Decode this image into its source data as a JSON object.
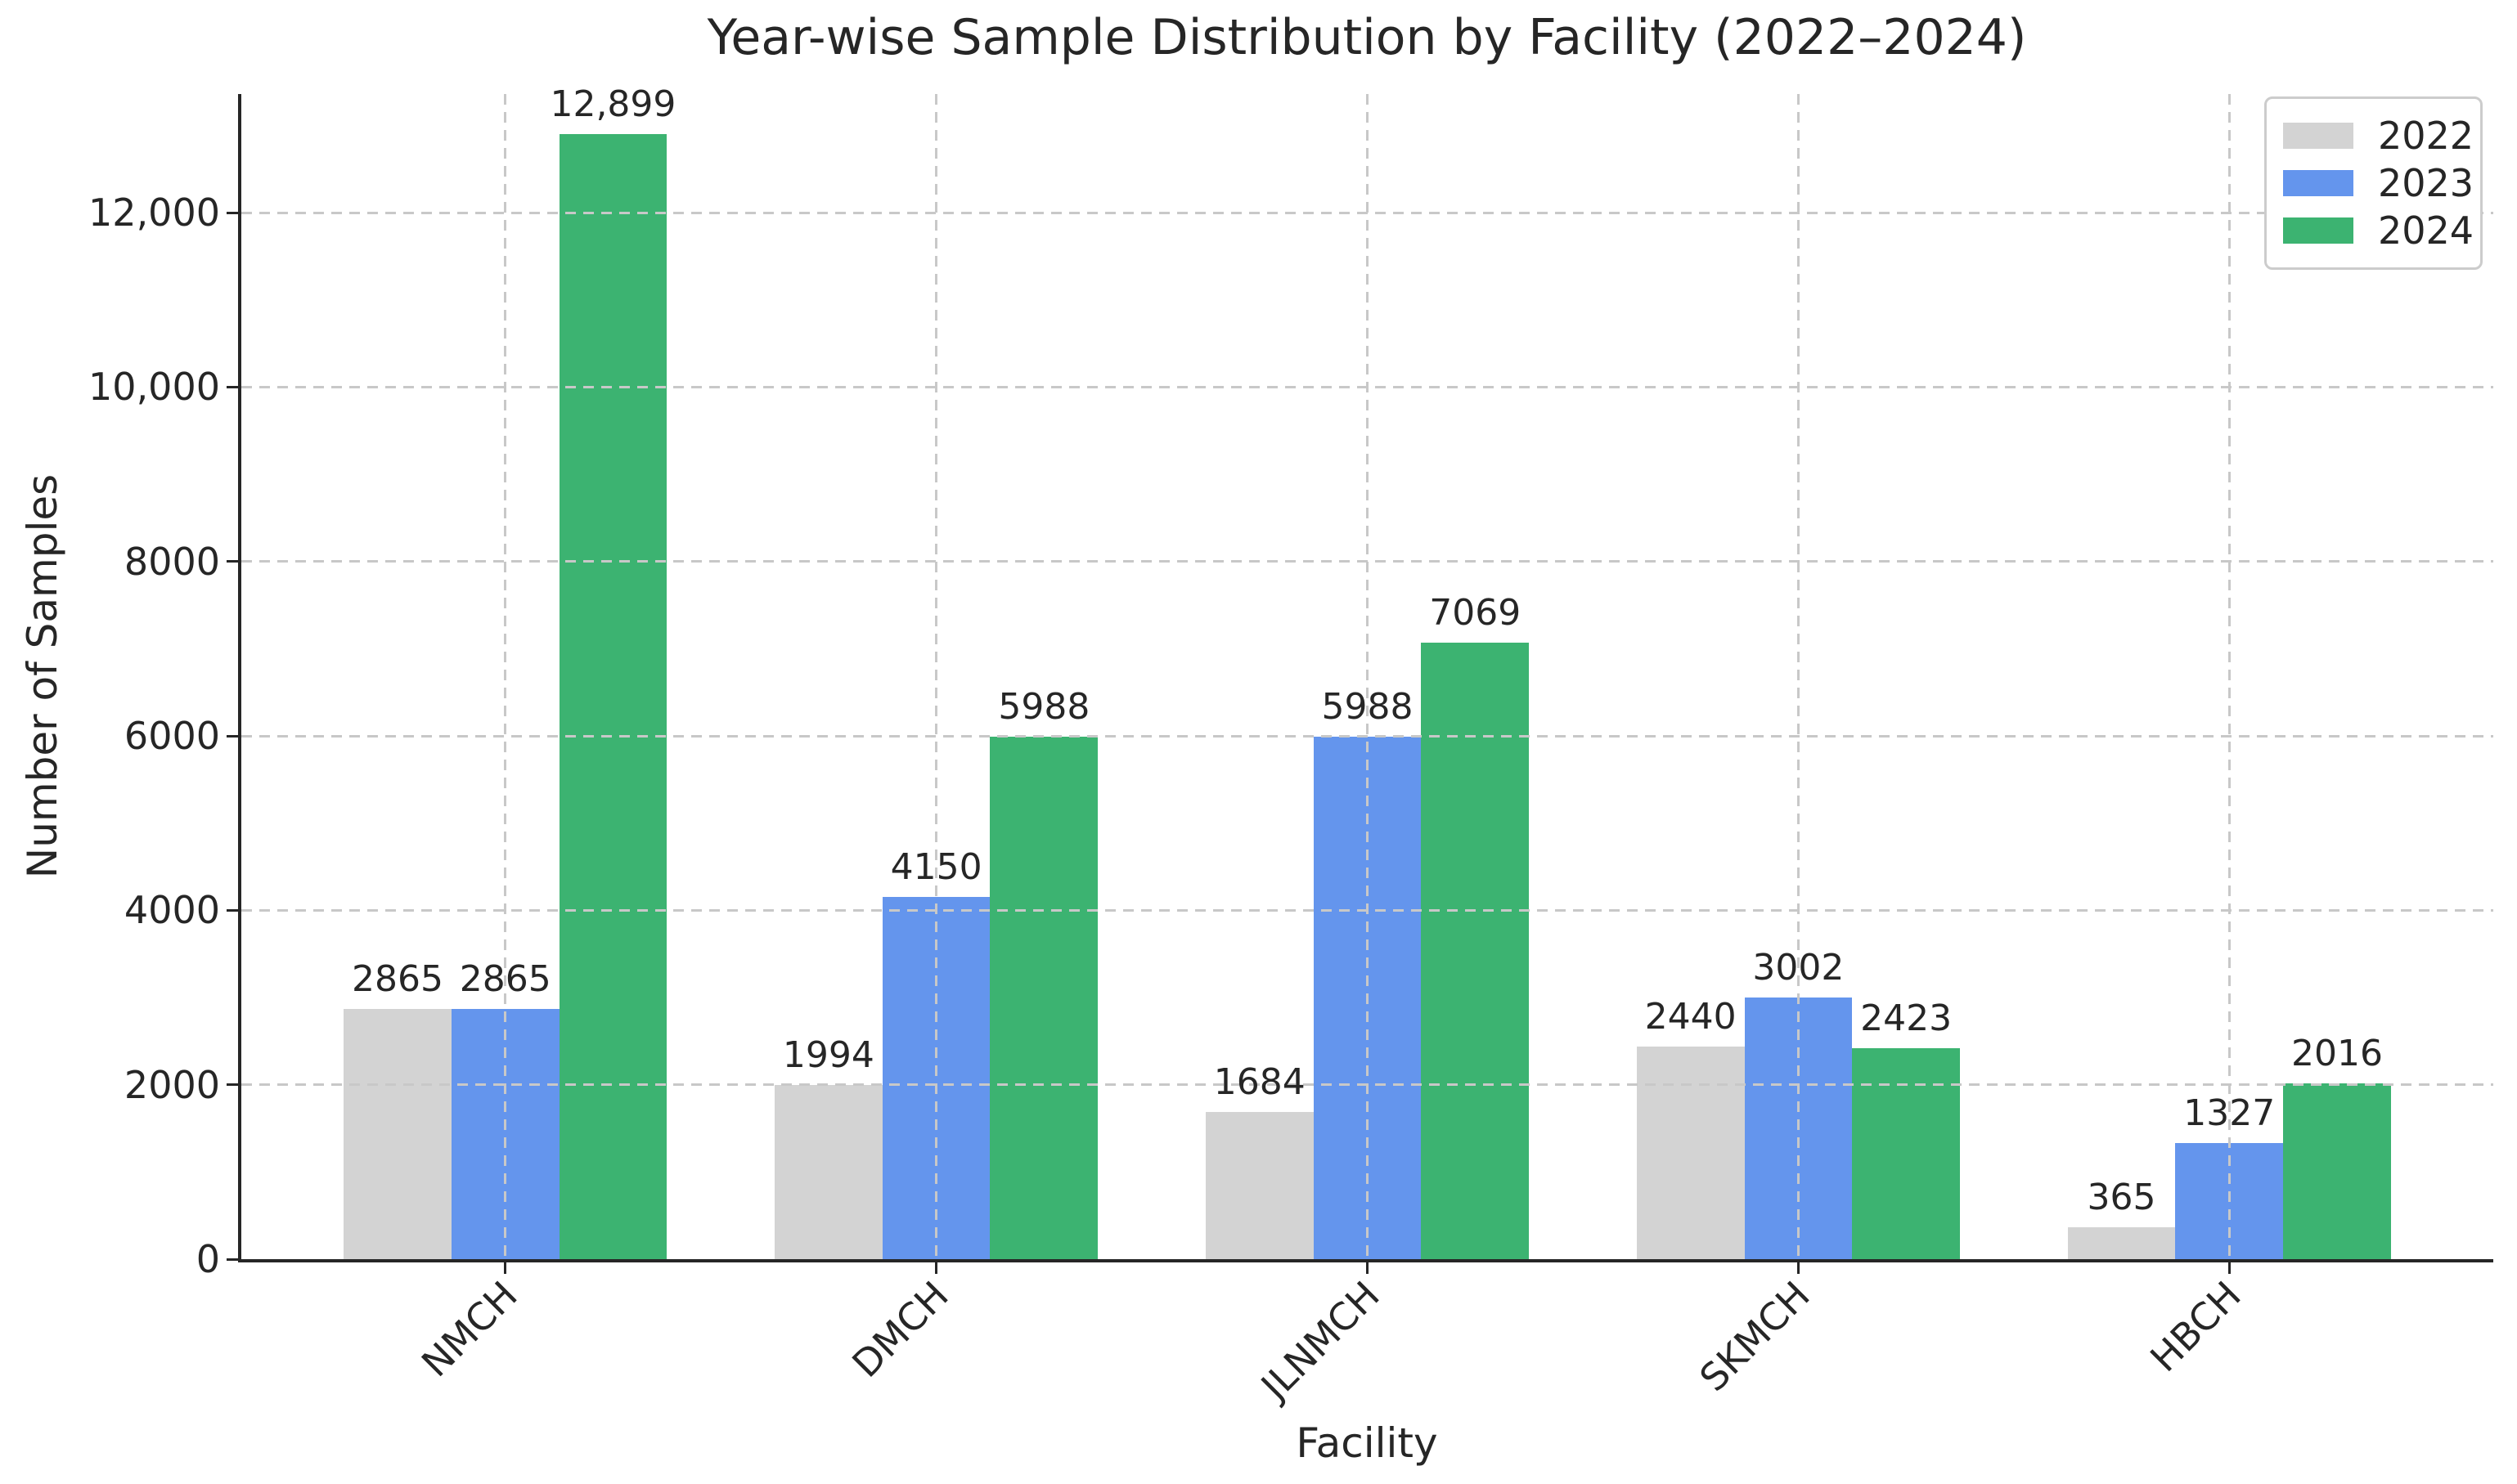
{
  "chart_data": {
    "type": "bar",
    "title": "Year-wise Sample Distribution by Facility (2022–2024)",
    "xlabel": "Facility",
    "ylabel": "Number of Samples",
    "categories": [
      "NMCH",
      "DMCH",
      "JLNMCH",
      "SKMCH",
      "HBCH"
    ],
    "series": [
      {
        "name": "2022",
        "color": "#D3D3D3",
        "values": [
          2865,
          1994,
          1684,
          2440,
          365
        ],
        "value_labels": [
          "2865",
          "1994",
          "1684",
          "2440",
          "365"
        ]
      },
      {
        "name": "2023",
        "color": "#6495ED",
        "values": [
          2865,
          4150,
          5988,
          3002,
          1327
        ],
        "value_labels": [
          "2865",
          "4150",
          "5988",
          "3002",
          "1327"
        ]
      },
      {
        "name": "2024",
        "color": "#3CB371",
        "values": [
          12899,
          5988,
          7069,
          2423,
          2016
        ],
        "value_labels": [
          "12,899",
          "5988",
          "7069",
          "2423",
          "2016"
        ]
      }
    ],
    "yticks": [
      {
        "value": 0,
        "label": "0"
      },
      {
        "value": 2000,
        "label": "2000"
      },
      {
        "value": 4000,
        "label": "4000"
      },
      {
        "value": 6000,
        "label": "6000"
      },
      {
        "value": 8000,
        "label": "8000"
      },
      {
        "value": 10000,
        "label": "10,000"
      },
      {
        "value": 12000,
        "label": "12,000"
      }
    ],
    "ylim": [
      0,
      13360
    ],
    "grid": {
      "style": "dashed",
      "color": "#c8c8c8",
      "horizontal": true,
      "vertical": true,
      "drawn_above_bars": true
    },
    "legend": {
      "position": "upper right",
      "entries": [
        "2022",
        "2023",
        "2024"
      ]
    },
    "axis_color": "#262626",
    "text_color": "#262626",
    "background_color": "#ffffff"
  }
}
